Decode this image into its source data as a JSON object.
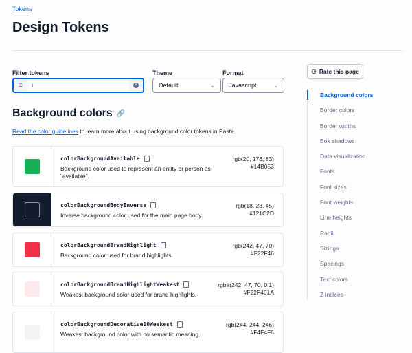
{
  "breadcrumb": "Tokens",
  "title": "Design Tokens",
  "filter": {
    "label": "Filter tokens",
    "value": "i"
  },
  "theme": {
    "label": "Theme",
    "value": "Default"
  },
  "format": {
    "label": "Format",
    "value": "Javascript"
  },
  "section": {
    "title": "Background colors",
    "link_text": "Read the color guidelines",
    "intro": " to learn more about using background color tokens in Paste."
  },
  "tokens": [
    {
      "name": "colorBackgroundAvailable",
      "desc": "Background color used to represent an entity or person as \"available\".",
      "rgb": "rgb(20, 176, 83)",
      "hex": "#14B053",
      "color": "#14B053"
    },
    {
      "name": "colorBackgroundBodyInverse",
      "desc": "Inverse background color used for the main page body.",
      "rgb": "rgb(18, 28, 45)",
      "hex": "#121C2D",
      "color": "#121C2D"
    },
    {
      "name": "colorBackgroundBrandHighlight",
      "desc": "Background color used for brand highlights.",
      "rgb": "rgb(242, 47, 70)",
      "hex": "#F22F46",
      "color": "#F22F46"
    },
    {
      "name": "colorBackgroundBrandHighlightWeakest",
      "desc": "Weakest background color used for brand highlights.",
      "rgb": "rgba(242, 47, 70, 0.1)",
      "hex": "#F22F461A",
      "color": "#F22F461A"
    },
    {
      "name": "colorBackgroundDecorative10Weakest",
      "desc": "Weakest background color with no semantic meaning.",
      "rgb": "rgb(244, 244, 246)",
      "hex": "#F4F4F6",
      "color": "#F4F4F6"
    }
  ],
  "rate_button": "Rate this page",
  "nav": [
    "Background colors",
    "Border colors",
    "Border widths",
    "Box shadows",
    "Data visualization",
    "Fonts",
    "Font sizes",
    "Font weights",
    "Line heights",
    "Radii",
    "Sizings",
    "Spacings",
    "Text colors",
    "Z indices"
  ]
}
